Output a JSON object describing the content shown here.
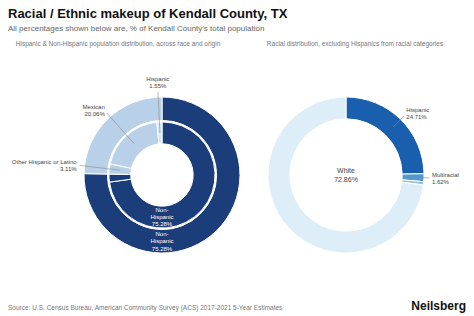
{
  "title": "Racial / Ethnic makeup of Kendall County, TX",
  "subtitle": "All percentages shown below are, % of Kendall County's total population",
  "annotations": [
    "Source: U.S. Census Bureau, American Community Survey (ACS) 2017-2021 5-Year Estimates",
    "Neilsberg"
  ],
  "chart_data": [
    {
      "type": "donut",
      "title": "Hispanic & Non-Hispanic population distribution, across race and origin",
      "series": [
        {
          "values": [
            75.28,
            24.72
          ],
          "colors": [
            "#1b3d7a",
            "#b8d0e8"
          ]
        },
        {
          "values": [
            72.86,
            2.42,
            3.11,
            20.06,
            1.55
          ],
          "colors": [
            "#1b3d7a",
            "#1b3d7a",
            "#b8d0e8",
            "#b8d0e8",
            "#d4e8f5"
          ]
        }
      ],
      "annotations": [
        "Non-\nHispanic\n75.28%",
        "Non-\nHispanic\n75.28%",
        "Other Hispanic or Latino\n3.11%",
        "Mexican\n20.06%",
        "Hispanic\n1.55%"
      ]
    },
    {
      "type": "donut",
      "title": "Racial distribution, excluding Hispanics from racial categories",
      "values": [
        24.71,
        1.62,
        0.67,
        72.86
      ],
      "colors": [
        "#1a5fad",
        "#5599cc",
        "#99c0dd",
        "#deeef8"
      ],
      "annotations": [
        "Hispanic\n24.71%",
        "Multiracial\n1.62%",
        "White\n72.86%"
      ]
    }
  ]
}
